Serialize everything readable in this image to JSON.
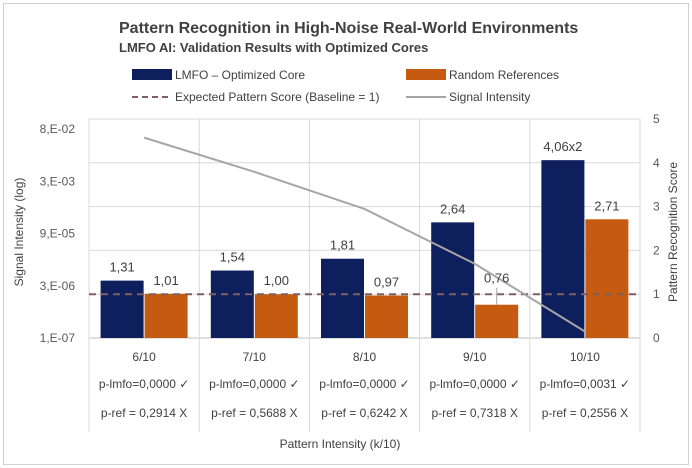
{
  "chart_data": {
    "type": "bar",
    "title": "Pattern Recognition in High-Noise Real-World Environments",
    "subtitle": "LMFO AI: Validation Results with Optimized Cores",
    "xlabel": "Pattern Intensity (k/10)",
    "ylabel_left": "Signal Intensity (log)",
    "ylabel_right": "Pattern Recognition Score",
    "categories": [
      "6/10",
      "7/10",
      "8/10",
      "9/10",
      "10/10"
    ],
    "left_axis": {
      "scale": "log",
      "ticks": [
        "8,E-02",
        "3,E-03",
        "9,E-05",
        "3,E-06",
        "1,E-07"
      ]
    },
    "right_axis": {
      "min": 0,
      "max": 5,
      "ticks": [
        "5",
        "4",
        "3",
        "2",
        "1",
        "0"
      ]
    },
    "series": [
      {
        "name": "LMFO – Optimized Core",
        "kind": "bar",
        "color": "#0d1f5c",
        "values": [
          1.31,
          1.54,
          1.81,
          2.64,
          4.06
        ],
        "labels": [
          "1,31",
          "1,54",
          "1,81",
          "2,64",
          "4,06x2"
        ]
      },
      {
        "name": "Random References",
        "kind": "bar",
        "color": "#c55a11",
        "values": [
          1.01,
          1.0,
          0.97,
          0.76,
          2.71
        ],
        "labels": [
          "1,01",
          "1,00",
          "0,97",
          "0,76",
          "2,71"
        ]
      },
      {
        "name": "Expected Pattern Score (Baseline = 1)",
        "kind": "dashed-line",
        "color": "#7f5f5f",
        "values": [
          1,
          1,
          1,
          1,
          1
        ]
      },
      {
        "name": "Signal Intensity",
        "kind": "line",
        "color": "#a6a6a6",
        "values": [
          0.025,
          0.003,
          0.0003,
          1e-05,
          1.5e-07
        ]
      }
    ],
    "table_rows": [
      [
        "p-lmfo=0,0000 ✓",
        "p-lmfo=0,0000 ✓",
        "p-lmfo=0,0000 ✓",
        "p-lmfo=0,0000 ✓",
        "p-lmfo=0,0031 ✓"
      ],
      [
        "p-ref = 0,2914 X",
        "p-ref = 0,5688 X",
        "p-ref = 0,6242 X",
        "p-ref = 0,7318 X",
        "p-ref = 0,2556 X"
      ]
    ],
    "grid": true,
    "legend_position": "top"
  }
}
